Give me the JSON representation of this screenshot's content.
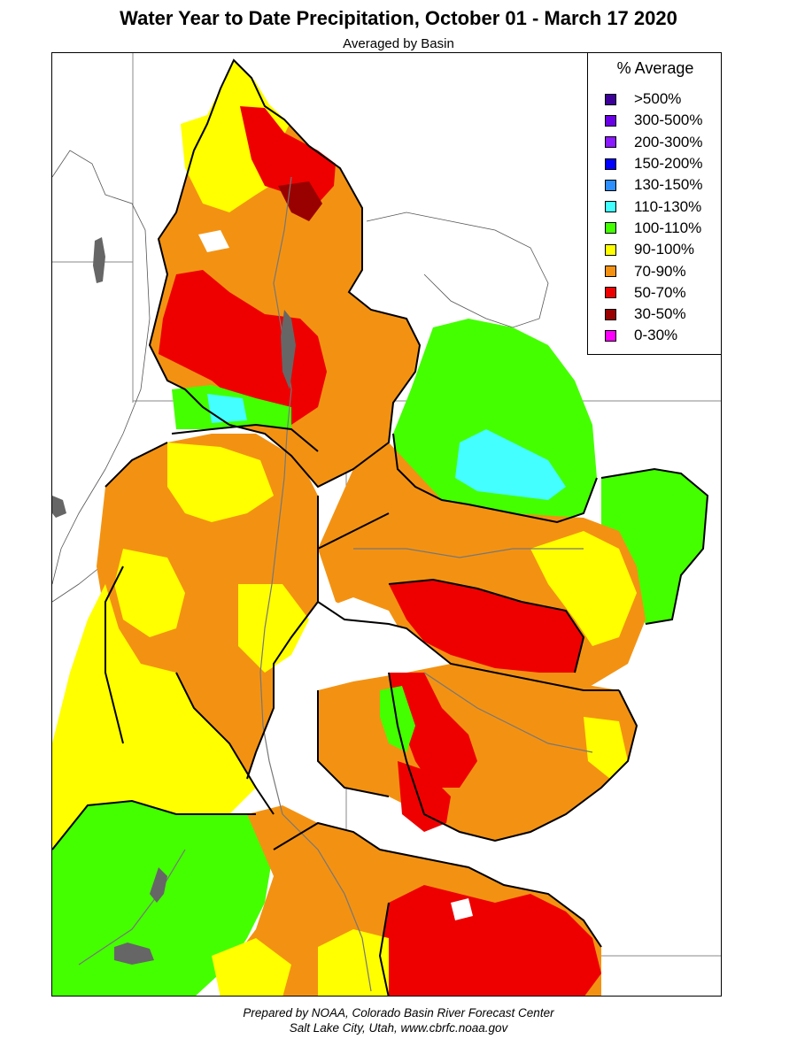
{
  "title": "Water Year to Date Precipitation, October 01  - March 17 2020",
  "subtitle": "Averaged by Basin",
  "legend": {
    "title": "% Average",
    "items": [
      {
        "label": ">500%",
        "color": "#3d0099"
      },
      {
        "label": "300-500%",
        "color": "#6a00e6"
      },
      {
        "label": "200-300%",
        "color": "#8a1aff"
      },
      {
        "label": "150-200%",
        "color": "#0000ff"
      },
      {
        "label": "130-150%",
        "color": "#2e8fff"
      },
      {
        "label": "110-130%",
        "color": "#44ffff"
      },
      {
        "label": "100-110%",
        "color": "#44ff00"
      },
      {
        "label": "90-100%",
        "color": "#ffff00"
      },
      {
        "label": "70-90%",
        "color": "#f39212"
      },
      {
        "label": "50-70%",
        "color": "#ee0000"
      },
      {
        "label": "30-50%",
        "color": "#990000"
      },
      {
        "label": "0-30%",
        "color": "#ff00ff"
      }
    ]
  },
  "credit": {
    "line1": "Prepared by NOAA, Colorado Basin River Forecast Center",
    "line2": "Salt Lake City, Utah, www.cbrfc.noaa.gov"
  }
}
